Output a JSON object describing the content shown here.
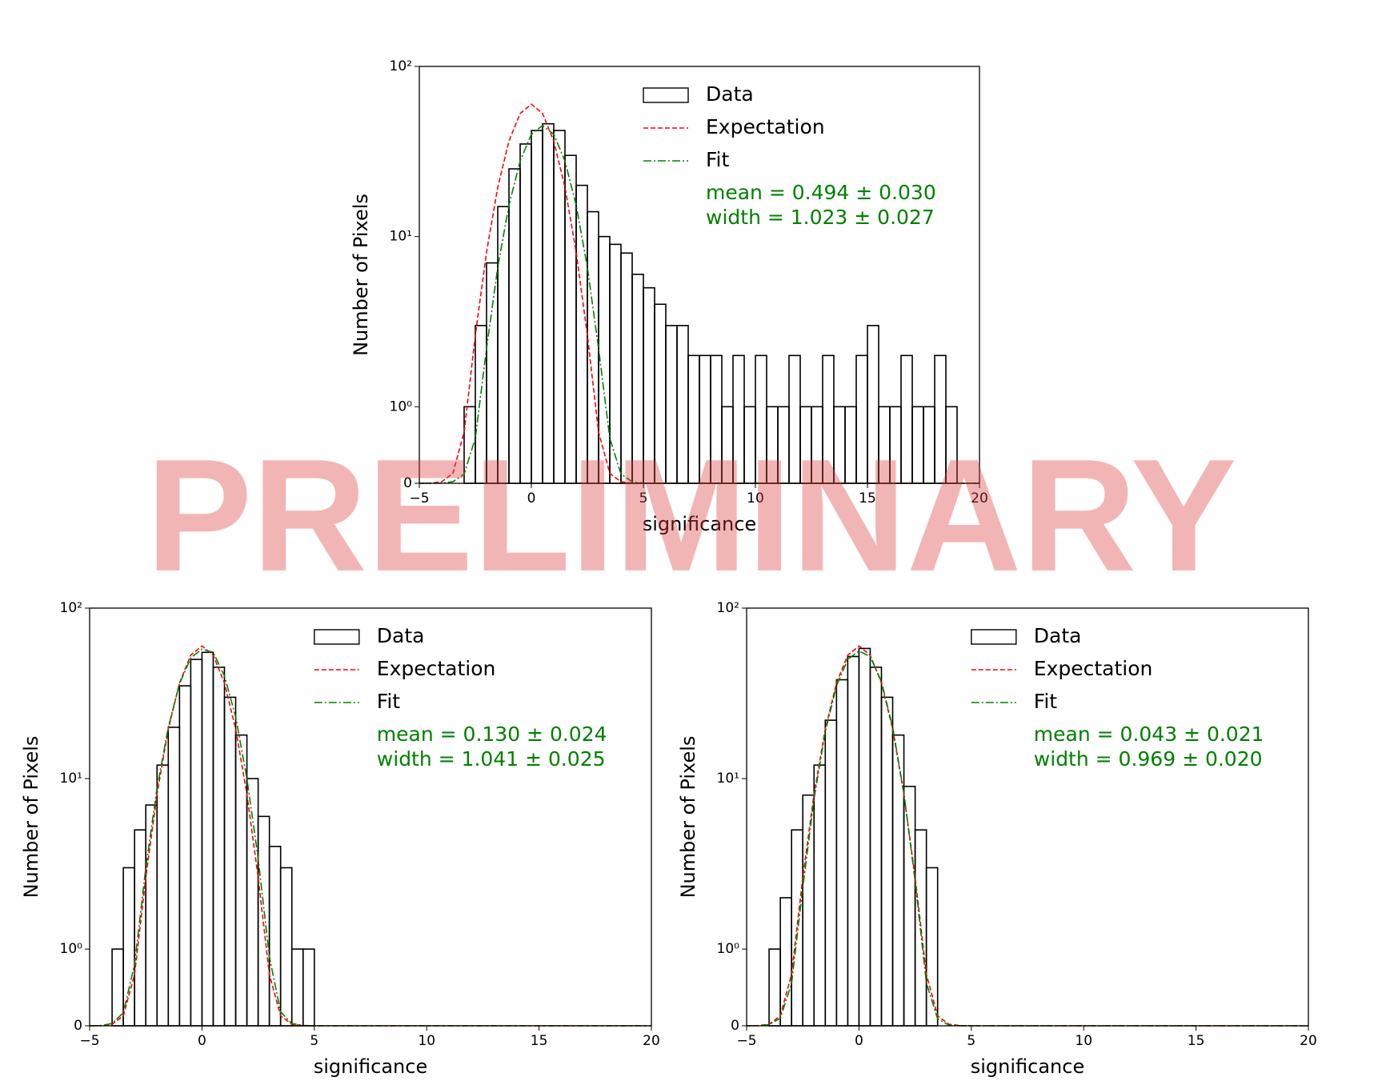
{
  "watermark": "PRELIMINARY",
  "chart_data": [
    {
      "type": "histogram",
      "name": "Data",
      "xlabel": "significance",
      "ylabel": "Number of Pixels",
      "yscale": "symlog",
      "linthresh": 1,
      "xlim": [
        -5,
        20
      ],
      "ylim": [
        0,
        100
      ],
      "xticks": [
        {
          "value": -5,
          "label": "−5"
        },
        0,
        5,
        10,
        15,
        20
      ],
      "yticks": [
        0,
        {
          "value": 1,
          "label": "10⁰"
        },
        {
          "value": 10,
          "label": "10¹"
        },
        {
          "value": 100,
          "label": "10²"
        }
      ],
      "bins": [
        -5,
        -4.5,
        -4,
        -3.5,
        -3,
        -2.5,
        -2,
        -1.5,
        -1,
        -0.5,
        0,
        0.5,
        1,
        1.5,
        2,
        2.5,
        3,
        3.5,
        4,
        4.5,
        5,
        5.5,
        6,
        6.5,
        7,
        7.5,
        8,
        8.5,
        9,
        9.5,
        10,
        10.5,
        11,
        11.5,
        12,
        12.5,
        13,
        13.5,
        14,
        14.5,
        15,
        15.5,
        16,
        16.5,
        17,
        17.5,
        18,
        18.5,
        19,
        19.5,
        20
      ],
      "values": [
        0,
        0,
        0,
        0,
        1,
        3,
        7,
        15,
        25,
        35,
        42,
        46,
        42,
        30,
        20,
        14,
        10,
        9,
        8,
        6,
        5,
        4,
        3,
        3,
        2,
        2,
        2,
        1,
        2,
        1,
        2,
        1,
        1,
        2,
        1,
        1,
        2,
        1,
        1,
        2,
        3,
        1,
        1,
        2,
        1,
        1,
        2,
        1,
        0,
        0
      ],
      "color": "#000000",
      "series": [
        {
          "name": "Expectation",
          "color": "#ff0000",
          "style": "dashed",
          "x": [
            -5,
            -4.5,
            -4,
            -3.5,
            -3,
            -2.5,
            -2,
            -1.5,
            -1,
            -0.5,
            0,
            0.5,
            1,
            1.5,
            2,
            2.5,
            3,
            3.5,
            4,
            4.5,
            5,
            5.5,
            20
          ],
          "values": [
            0.0002,
            0.0024,
            0.02,
            0.13,
            0.67,
            2.63,
            8.1,
            19.5,
            36.4,
            52.9,
            60,
            52.9,
            36.4,
            19.5,
            8.1,
            2.63,
            0.67,
            0.13,
            0.02,
            0.0024,
            0.0002,
            0,
            0
          ]
        },
        {
          "name": "Fit",
          "color": "#008000",
          "style": "dashdot",
          "x": [
            -5,
            -4.5,
            -4,
            -3.5,
            -3,
            -2.5,
            -2,
            -1.5,
            -1,
            -0.5,
            0,
            0.5,
            1,
            1.5,
            2,
            2.5,
            3,
            3.5,
            4,
            4.5,
            5,
            5.5,
            20
          ],
          "values": [
            0,
            0.0003,
            0.0027,
            0.021,
            0.12,
            0.59,
            2.2,
            6.6,
            15.3,
            27.8,
            39.9,
            45,
            39.9,
            27.8,
            15.3,
            6.6,
            2.2,
            0.59,
            0.12,
            0.021,
            0.0027,
            0.0003,
            0
          ]
        }
      ],
      "annotations": [
        "mean = 0.494 ± 0.030",
        "width = 1.023 ± 0.027"
      ],
      "annotation_color": "#008000"
    },
    {
      "type": "histogram",
      "name": "Data",
      "xlabel": "significance",
      "ylabel": "Number of Pixels",
      "yscale": "symlog",
      "linthresh": 1,
      "xlim": [
        -5,
        20
      ],
      "ylim": [
        0,
        100
      ],
      "xticks": [
        {
          "value": -5,
          "label": "−5"
        },
        0,
        5,
        10,
        15,
        20
      ],
      "yticks": [
        0,
        {
          "value": 1,
          "label": "10⁰"
        },
        {
          "value": 10,
          "label": "10¹"
        },
        {
          "value": 100,
          "label": "10²"
        }
      ],
      "bins": [
        -5,
        -4.5,
        -4,
        -3.5,
        -3,
        -2.5,
        -2,
        -1.5,
        -1,
        -0.5,
        0,
        0.5,
        1,
        1.5,
        2,
        2.5,
        3,
        3.5,
        4,
        4.5,
        5,
        5.5,
        6,
        6.5,
        7,
        7.5,
        8,
        8.5,
        9,
        9.5,
        10,
        10.5,
        11,
        11.5,
        12,
        12.5,
        13,
        13.5,
        14,
        14.5,
        15,
        15.5,
        16,
        16.5,
        17,
        17.5,
        18,
        18.5,
        19,
        19.5,
        20
      ],
      "values": [
        0,
        0,
        1,
        3,
        5,
        7,
        12,
        20,
        35,
        50,
        55,
        45,
        30,
        18,
        10,
        6,
        4,
        3,
        1,
        1,
        0,
        0,
        0,
        0,
        0,
        0,
        0,
        0,
        0,
        0,
        0,
        0,
        0,
        0,
        0,
        0,
        0,
        0,
        0,
        0,
        0,
        0,
        0,
        0,
        0,
        0,
        0,
        0,
        0,
        0
      ],
      "color": "#000000",
      "series": [
        {
          "name": "Expectation",
          "color": "#ff0000",
          "style": "dashed",
          "x": [
            -5,
            -4.5,
            -4,
            -3.5,
            -3,
            -2.5,
            -2,
            -1.5,
            -1,
            -0.5,
            0,
            0.5,
            1,
            1.5,
            2,
            2.5,
            3,
            3.5,
            4,
            4.5,
            5,
            5.5,
            20
          ],
          "values": [
            0.0002,
            0.0024,
            0.02,
            0.13,
            0.67,
            2.63,
            8.1,
            19.5,
            36.4,
            52.9,
            60,
            52.9,
            36.4,
            19.5,
            8.1,
            2.63,
            0.67,
            0.13,
            0.02,
            0.0024,
            0.0002,
            0,
            0
          ]
        },
        {
          "name": "Fit",
          "color": "#008000",
          "style": "dashdot",
          "x": [
            -5,
            -4.5,
            -4,
            -3.5,
            -3,
            -2.5,
            -2,
            -1.5,
            -1,
            -0.5,
            0,
            0.5,
            1,
            1.5,
            2,
            2.5,
            3,
            3.5,
            4,
            4.5,
            5,
            5.5,
            20
          ],
          "values": [
            0.0003,
            0.003,
            0.03,
            0.17,
            0.8,
            3.0,
            8.8,
            20,
            36,
            51,
            57.5,
            55,
            40,
            23,
            10,
            3.4,
            0.9,
            0.18,
            0.03,
            0.004,
            0.0004,
            0,
            0
          ]
        }
      ],
      "annotations": [
        "mean = 0.130 ± 0.024",
        "width = 1.041 ± 0.025"
      ],
      "annotation_color": "#008000"
    },
    {
      "type": "histogram",
      "name": "Data",
      "xlabel": "significance",
      "ylabel": "Number of Pixels",
      "yscale": "symlog",
      "linthresh": 1,
      "xlim": [
        -5,
        20
      ],
      "ylim": [
        0,
        100
      ],
      "xticks": [
        {
          "value": -5,
          "label": "−5"
        },
        0,
        5,
        10,
        15,
        20
      ],
      "yticks": [
        0,
        {
          "value": 1,
          "label": "10⁰"
        },
        {
          "value": 10,
          "label": "10¹"
        },
        {
          "value": 100,
          "label": "10²"
        }
      ],
      "bins": [
        -5,
        -4.5,
        -4,
        -3.5,
        -3,
        -2.5,
        -2,
        -1.5,
        -1,
        -0.5,
        0,
        0.5,
        1,
        1.5,
        2,
        2.5,
        3,
        3.5,
        4,
        4.5,
        5,
        5.5,
        6,
        6.5,
        7,
        7.5,
        8,
        8.5,
        9,
        9.5,
        10,
        10.5,
        11,
        11.5,
        12,
        12.5,
        13,
        13.5,
        14,
        14.5,
        15,
        15.5,
        16,
        16.5,
        17,
        17.5,
        18,
        18.5,
        19,
        19.5,
        20
      ],
      "values": [
        0,
        0,
        1,
        2,
        5,
        8,
        12,
        22,
        38,
        52,
        58,
        45,
        30,
        18,
        9,
        5,
        3,
        0,
        0,
        0,
        0,
        0,
        0,
        0,
        0,
        0,
        0,
        0,
        0,
        0,
        0,
        0,
        0,
        0,
        0,
        0,
        0,
        0,
        0,
        0,
        0,
        0,
        0,
        0,
        0,
        0,
        0,
        0,
        0,
        0
      ],
      "color": "#000000",
      "series": [
        {
          "name": "Expectation",
          "color": "#ff0000",
          "style": "dashed",
          "x": [
            -5,
            -4.5,
            -4,
            -3.5,
            -3,
            -2.5,
            -2,
            -1.5,
            -1,
            -0.5,
            0,
            0.5,
            1,
            1.5,
            2,
            2.5,
            3,
            3.5,
            4,
            4.5,
            5,
            5.5,
            20
          ],
          "values": [
            0.0002,
            0.0024,
            0.02,
            0.13,
            0.67,
            2.63,
            8.1,
            19.5,
            36.4,
            52.9,
            60,
            52.9,
            36.4,
            19.5,
            8.1,
            2.63,
            0.67,
            0.13,
            0.02,
            0.0024,
            0.0002,
            0,
            0
          ]
        },
        {
          "name": "Fit",
          "color": "#008000",
          "style": "dashdot",
          "x": [
            -5,
            -4.5,
            -4,
            -3.5,
            -3,
            -2.5,
            -2,
            -1.5,
            -1,
            -0.5,
            0,
            0.5,
            1,
            1.5,
            2,
            2.5,
            3,
            3.5,
            4,
            4.5,
            5,
            5.5,
            20
          ],
          "values": [
            0.0001,
            0.0013,
            0.014,
            0.1,
            0.55,
            2.3,
            7.6,
            18.8,
            35,
            50,
            56,
            52,
            37,
            20,
            8.2,
            2.5,
            0.56,
            0.09,
            0.01,
            0.001,
            0.0001,
            0,
            0
          ]
        }
      ],
      "annotations": [
        "mean = 0.043 ± 0.021",
        "width = 0.969 ± 0.020"
      ],
      "annotation_color": "#008000"
    }
  ]
}
